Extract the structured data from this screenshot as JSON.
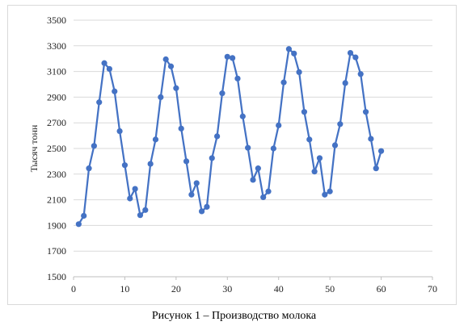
{
  "caption": "Рисунок 1 – Производство молока",
  "chart_data": {
    "type": "line",
    "title": "",
    "xlabel": "",
    "ylabel": "Тысяч тонн",
    "xlim": [
      0,
      70
    ],
    "ylim": [
      1500,
      3500
    ],
    "x_ticks": [
      0,
      10,
      20,
      30,
      40,
      50,
      60,
      70
    ],
    "y_ticks": [
      1500,
      1700,
      1900,
      2100,
      2300,
      2500,
      2700,
      2900,
      3100,
      3300,
      3500
    ],
    "grid": "horizontal",
    "legend": "none",
    "series": [
      {
        "color": "#4472c4",
        "marker": "circle",
        "x": [
          1,
          2,
          3,
          4,
          5,
          6,
          7,
          8,
          9,
          10,
          11,
          12,
          13,
          14,
          15,
          16,
          17,
          18,
          19,
          20,
          21,
          22,
          23,
          24,
          25,
          26,
          27,
          28,
          29,
          30,
          31,
          32,
          33,
          34,
          35,
          36,
          37,
          38,
          39,
          40,
          41,
          42,
          43,
          44,
          45,
          46,
          47,
          48,
          49,
          50,
          51,
          52,
          53,
          54,
          55,
          56,
          57,
          58,
          59,
          60
        ],
        "values": [
          1910,
          1975,
          2345,
          2520,
          2860,
          3165,
          3120,
          2945,
          2635,
          2370,
          2110,
          2185,
          1980,
          2020,
          2380,
          2570,
          2900,
          3195,
          3140,
          2970,
          2655,
          2400,
          2140,
          2230,
          2010,
          2045,
          2425,
          2595,
          2930,
          3215,
          3205,
          3045,
          2750,
          2505,
          2255,
          2345,
          2120,
          2165,
          2500,
          2680,
          3015,
          3275,
          3240,
          3095,
          2785,
          2570,
          2320,
          2425,
          2140,
          2165,
          2525,
          2690,
          3010,
          3245,
          3210,
          3080,
          2785,
          2575,
          2345,
          2480
        ]
      }
    ]
  }
}
